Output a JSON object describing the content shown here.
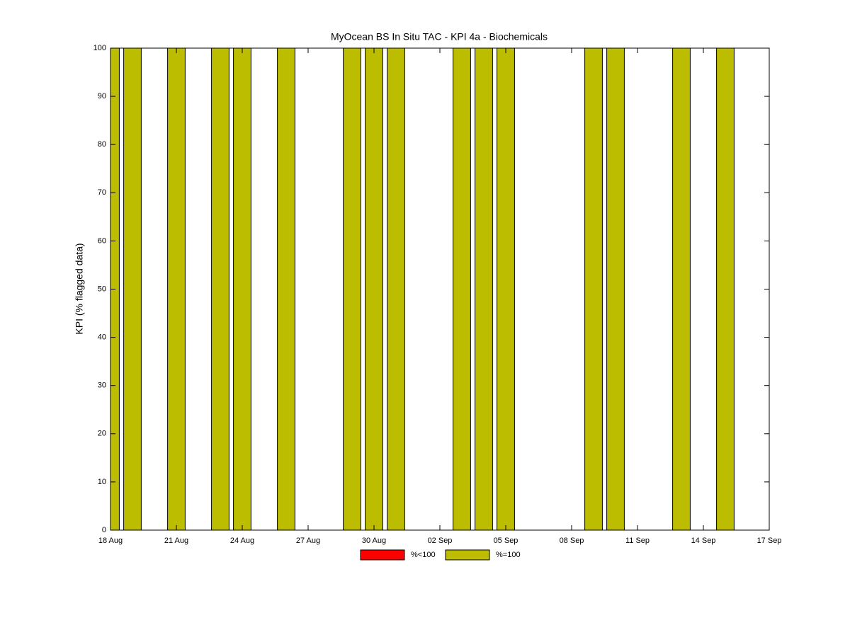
{
  "chart_data": {
    "type": "bar",
    "title": "MyOcean  BS In Situ TAC - KPI 4a - Biochemicals",
    "y_label": "KPI (% flagged data)",
    "x": [
      "18 Aug",
      "19 Aug",
      "21 Aug",
      "23 Aug",
      "24 Aug",
      "26 Aug",
      "29 Aug",
      "30 Aug",
      "31 Aug",
      "03 Sep",
      "04 Sep",
      "05 Sep",
      "09 Sep",
      "10 Sep",
      "13 Sep",
      "15 Sep"
    ],
    "series": [
      {
        "name": "%<100",
        "color": "#ff0000",
        "values": [
          null,
          null,
          null,
          null,
          null,
          null,
          null,
          null,
          null,
          null,
          null,
          null,
          null,
          null,
          null,
          null
        ]
      },
      {
        "name": "%=100",
        "color": "#bcbc00",
        "values": [
          100,
          100,
          100,
          100,
          100,
          100,
          100,
          100,
          100,
          100,
          100,
          100,
          100,
          100,
          100,
          100
        ]
      }
    ],
    "xlim": [
      "18 Aug",
      "17 Sep"
    ],
    "xticks": [
      "18 Aug",
      "21 Aug",
      "24 Aug",
      "27 Aug",
      "30 Aug",
      "02 Sep",
      "05 Sep",
      "08 Sep",
      "11 Sep",
      "14 Sep",
      "17 Sep"
    ],
    "ylim": [
      0,
      100
    ],
    "yticks": [
      0,
      10,
      20,
      30,
      40,
      50,
      60,
      70,
      80,
      90,
      100
    ],
    "grid": false,
    "legend": "bottom"
  }
}
